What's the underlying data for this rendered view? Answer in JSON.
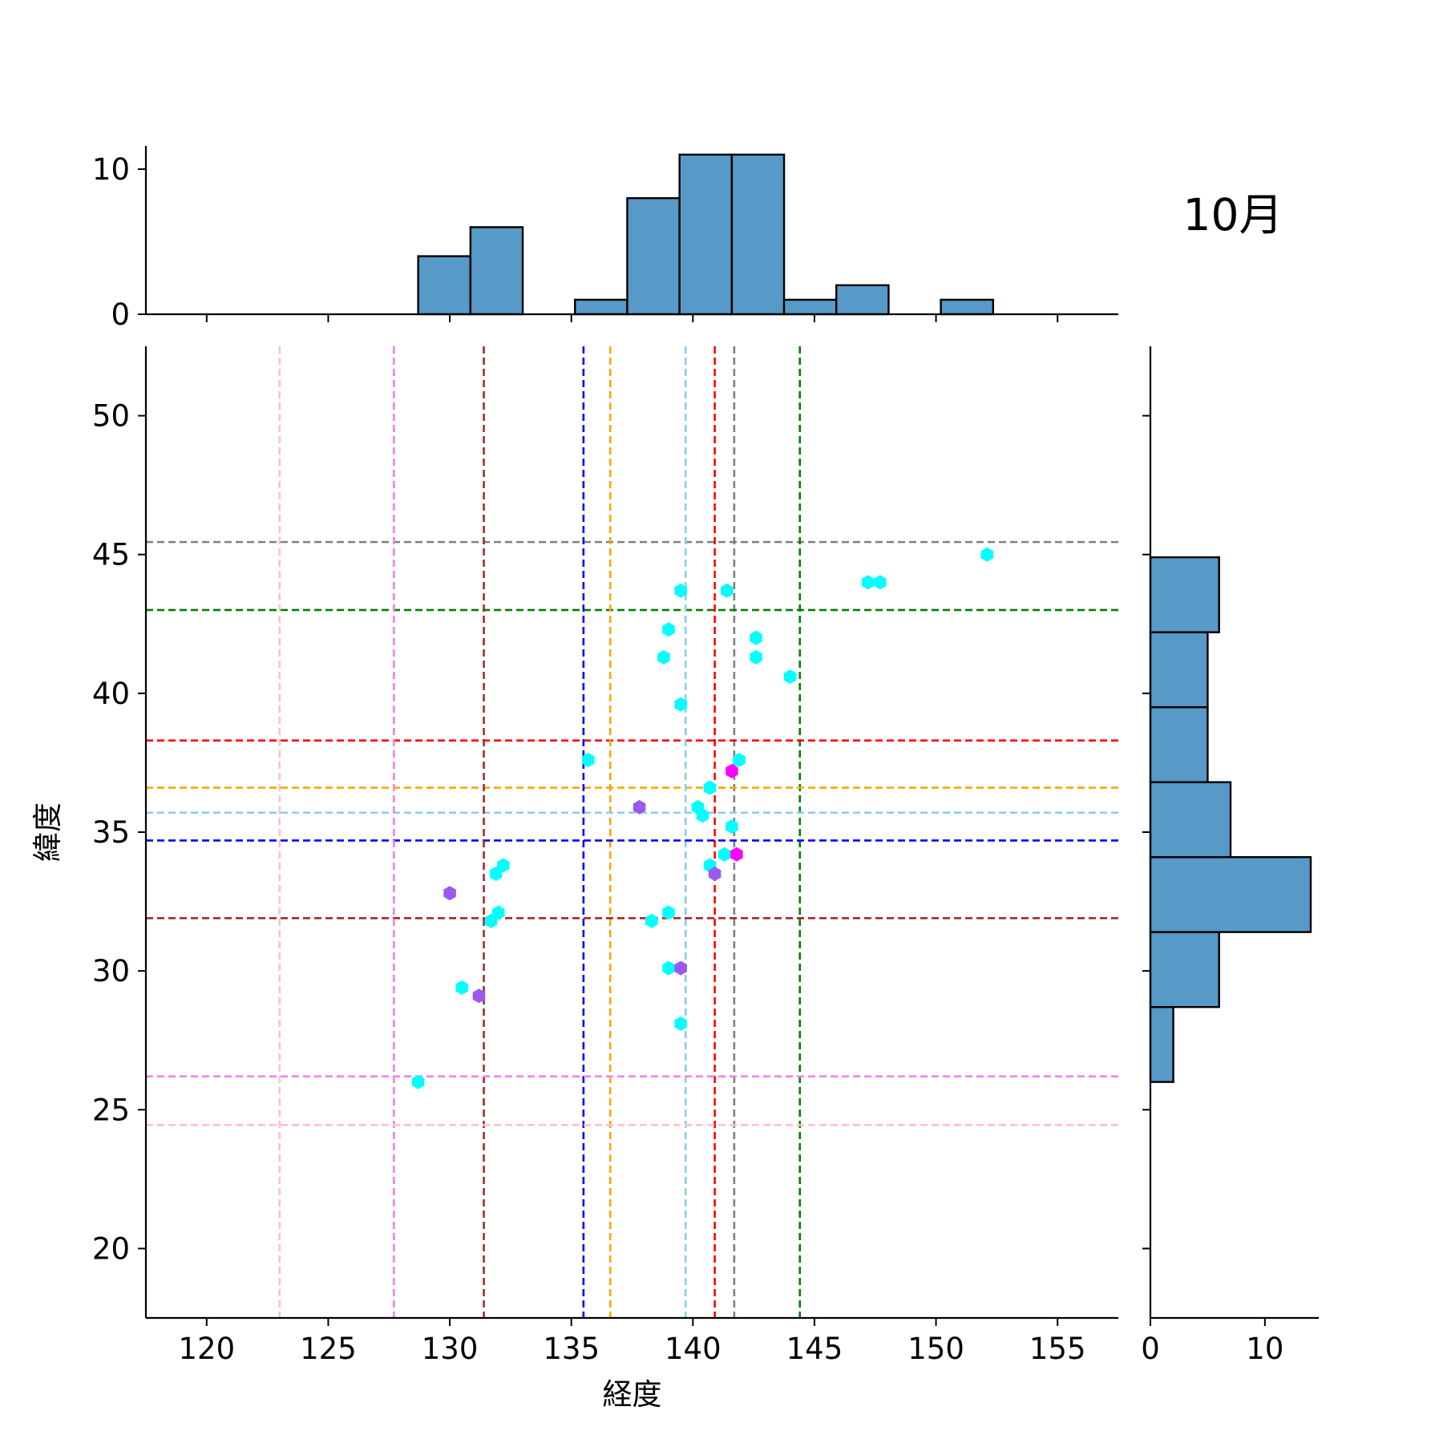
{
  "annotation": "10月",
  "chart_data": [
    {
      "id": "joint",
      "type": "scatter",
      "xlabel": "経度",
      "ylabel": "緯度",
      "xlim": [
        117.5,
        157.5
      ],
      "ylim": [
        17.5,
        52.5
      ],
      "xticks": [
        120,
        125,
        130,
        135,
        140,
        145,
        150,
        155
      ],
      "yticks": [
        20,
        25,
        30,
        35,
        40,
        45,
        50
      ],
      "grid": false,
      "marker": "hexagon",
      "reference_lines": [
        {
          "color": "#808080",
          "x": 141.7,
          "y": 45.45
        },
        {
          "color": "#008000",
          "x": 144.4,
          "y": 43.0
        },
        {
          "color": "#ff0000",
          "x": 140.9,
          "y": 38.3
        },
        {
          "color": "#ffa500",
          "x": 136.6,
          "y": 36.6
        },
        {
          "color": "#87ceeb",
          "x": 139.7,
          "y": 35.7
        },
        {
          "color": "#0000ff",
          "x": 135.5,
          "y": 34.7
        },
        {
          "color": "#a52a2a",
          "x": 131.4,
          "y": 31.9
        },
        {
          "color": "#ee82ee",
          "x": 127.7,
          "y": 26.2
        },
        {
          "color": "#ffc0cb",
          "x": 123.0,
          "y": 24.45
        }
      ],
      "points": [
        {
          "x": 152.1,
          "y": 45.0,
          "color": "#00ffff"
        },
        {
          "x": 147.2,
          "y": 44.0,
          "color": "#00ffff"
        },
        {
          "x": 147.7,
          "y": 44.0,
          "color": "#00ffff"
        },
        {
          "x": 139.5,
          "y": 43.7,
          "color": "#00ffff"
        },
        {
          "x": 141.4,
          "y": 43.7,
          "color": "#00ffff"
        },
        {
          "x": 139.0,
          "y": 42.3,
          "color": "#00ffff"
        },
        {
          "x": 142.6,
          "y": 42.0,
          "color": "#00ffff"
        },
        {
          "x": 138.8,
          "y": 41.3,
          "color": "#00ffff"
        },
        {
          "x": 142.6,
          "y": 41.3,
          "color": "#00ffff"
        },
        {
          "x": 144.0,
          "y": 40.6,
          "color": "#00ffff"
        },
        {
          "x": 139.5,
          "y": 39.6,
          "color": "#00ffff"
        },
        {
          "x": 135.7,
          "y": 37.6,
          "color": "#00ffff"
        },
        {
          "x": 141.9,
          "y": 37.6,
          "color": "#00ffff"
        },
        {
          "x": 141.6,
          "y": 37.2,
          "color": "#ff00ff"
        },
        {
          "x": 140.7,
          "y": 36.6,
          "color": "#00ffff"
        },
        {
          "x": 137.8,
          "y": 35.9,
          "color": "#9b59f0"
        },
        {
          "x": 140.2,
          "y": 35.9,
          "color": "#00ffff"
        },
        {
          "x": 140.4,
          "y": 35.6,
          "color": "#00ffff"
        },
        {
          "x": 141.6,
          "y": 35.2,
          "color": "#00ffff"
        },
        {
          "x": 141.3,
          "y": 34.2,
          "color": "#00ffff"
        },
        {
          "x": 141.8,
          "y": 34.2,
          "color": "#ff00ff"
        },
        {
          "x": 140.7,
          "y": 33.8,
          "color": "#00ffff"
        },
        {
          "x": 140.9,
          "y": 33.5,
          "color": "#9b59f0"
        },
        {
          "x": 132.2,
          "y": 33.8,
          "color": "#00ffff"
        },
        {
          "x": 131.9,
          "y": 33.5,
          "color": "#00ffff"
        },
        {
          "x": 130.0,
          "y": 32.8,
          "color": "#9b59f0"
        },
        {
          "x": 139.0,
          "y": 32.1,
          "color": "#00ffff"
        },
        {
          "x": 132.0,
          "y": 32.1,
          "color": "#00ffff"
        },
        {
          "x": 131.7,
          "y": 31.8,
          "color": "#00ffff"
        },
        {
          "x": 138.3,
          "y": 31.8,
          "color": "#00ffff"
        },
        {
          "x": 139.0,
          "y": 30.1,
          "color": "#00ffff"
        },
        {
          "x": 139.5,
          "y": 30.1,
          "color": "#9b59f0"
        },
        {
          "x": 130.5,
          "y": 29.4,
          "color": "#00ffff"
        },
        {
          "x": 131.2,
          "y": 29.1,
          "color": "#9b59f0"
        },
        {
          "x": 139.5,
          "y": 28.1,
          "color": "#00ffff"
        },
        {
          "x": 128.7,
          "y": 26.0,
          "color": "#00ffff"
        }
      ]
    },
    {
      "id": "top-histogram",
      "type": "bar",
      "orientation": "vertical",
      "ylim": [
        0,
        11.6
      ],
      "yticks": [
        0,
        10
      ],
      "bar_color": "#5799c7",
      "bins": [
        {
          "start": 128.7,
          "end": 130.85,
          "count": 4
        },
        {
          "start": 130.85,
          "end": 133.0,
          "count": 6
        },
        {
          "start": 133.0,
          "end": 135.15,
          "count": 0
        },
        {
          "start": 135.15,
          "end": 137.3,
          "count": 1
        },
        {
          "start": 137.3,
          "end": 139.45,
          "count": 8
        },
        {
          "start": 139.45,
          "end": 141.6,
          "count": 11
        },
        {
          "start": 141.6,
          "end": 143.75,
          "count": 11
        },
        {
          "start": 143.75,
          "end": 145.9,
          "count": 1
        },
        {
          "start": 145.9,
          "end": 148.05,
          "count": 2
        },
        {
          "start": 148.05,
          "end": 150.2,
          "count": 0
        },
        {
          "start": 150.2,
          "end": 152.35,
          "count": 1
        }
      ]
    },
    {
      "id": "right-histogram",
      "type": "bar",
      "orientation": "horizontal",
      "xlim": [
        0,
        14.7
      ],
      "xticks": [
        0,
        10
      ],
      "bar_color": "#5799c7",
      "bins": [
        {
          "start": 26.0,
          "end": 28.7,
          "count": 2
        },
        {
          "start": 28.7,
          "end": 31.4,
          "count": 6
        },
        {
          "start": 31.4,
          "end": 34.1,
          "count": 14
        },
        {
          "start": 34.1,
          "end": 36.8,
          "count": 7
        },
        {
          "start": 36.8,
          "end": 39.5,
          "count": 5
        },
        {
          "start": 39.5,
          "end": 42.2,
          "count": 5
        },
        {
          "start": 42.2,
          "end": 44.9,
          "count": 6
        }
      ]
    }
  ]
}
